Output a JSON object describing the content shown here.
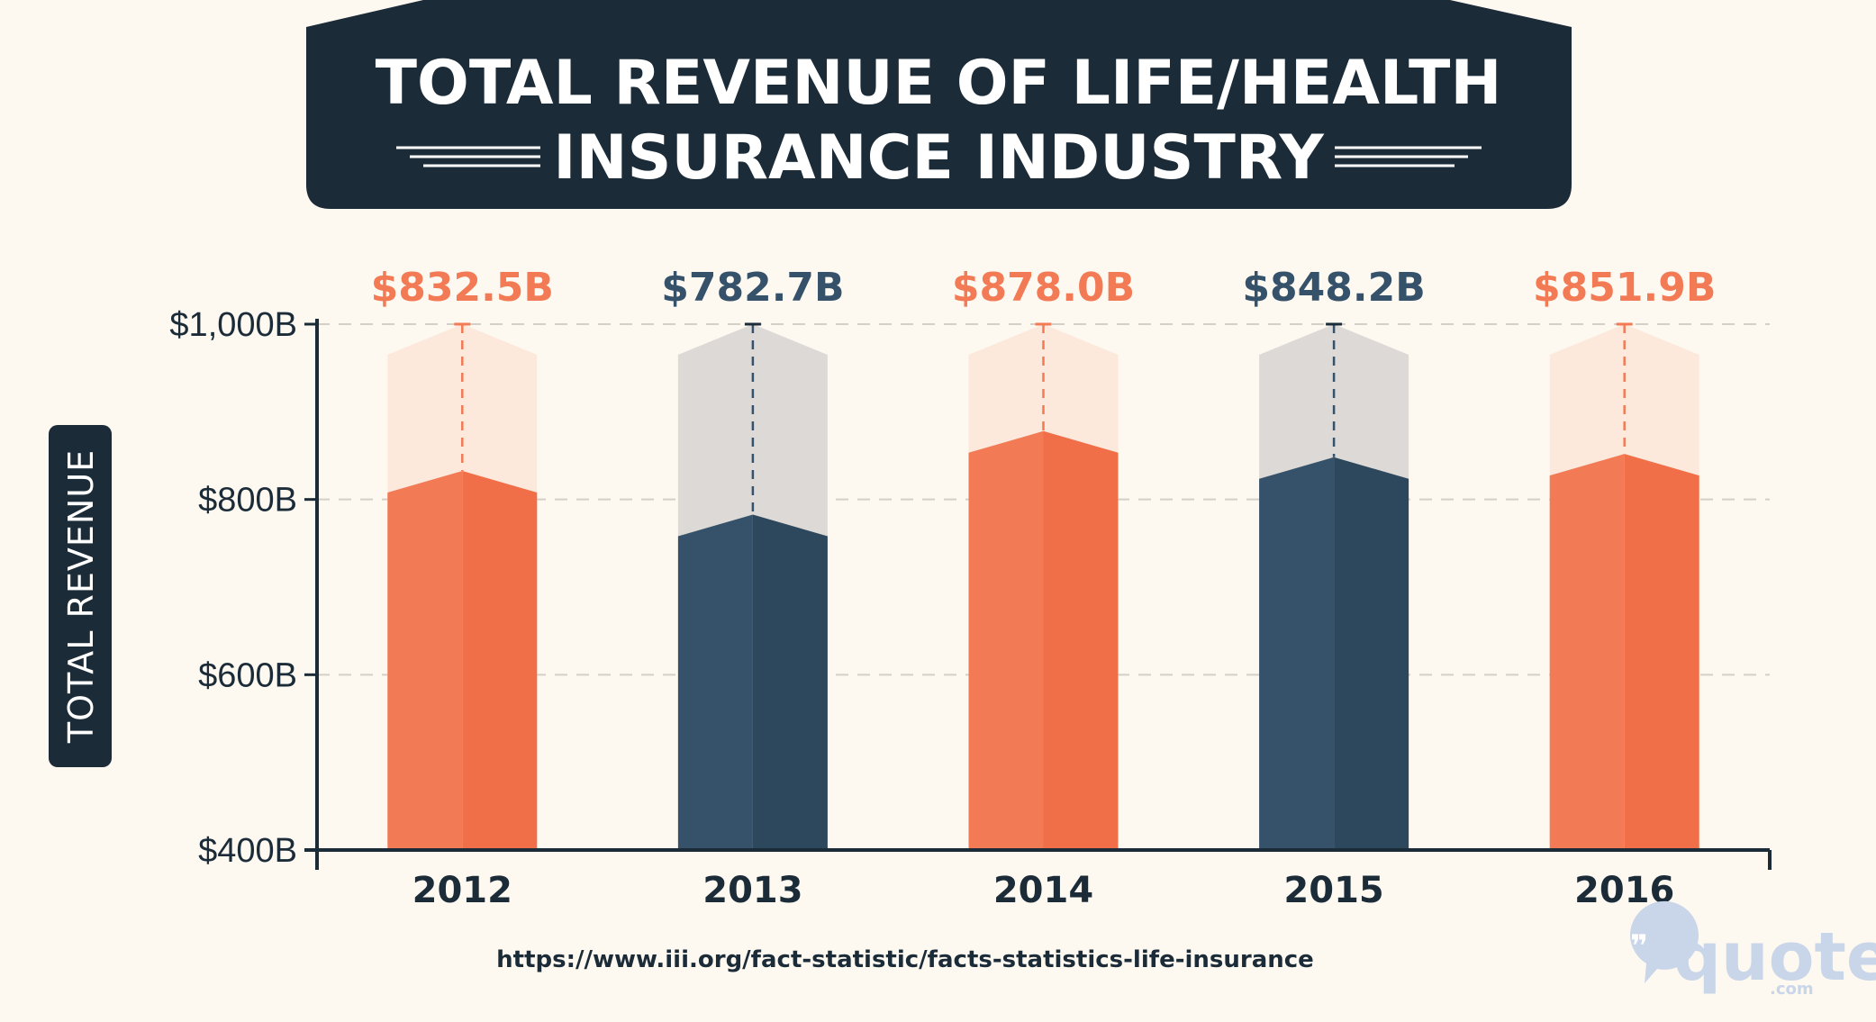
{
  "title": {
    "line1": "TOTAL REVENUE OF LIFE/HEALTH",
    "line2": "INSURANCE INDUSTRY"
  },
  "source": "https://www.iii.org/fact-statistic/facts-statistics-life-insurance",
  "logo": {
    "name": "quote",
    "suffix": ".com"
  },
  "colors": {
    "orange": "#f27a55",
    "orange_light": "#fde8dc",
    "navy": "#36526a",
    "navy_light": "#dcd9d6",
    "dark": "#1b2b38",
    "background": "#fdf9f1"
  },
  "chart_data": {
    "type": "bar",
    "categories": [
      "2012",
      "2013",
      "2014",
      "2015",
      "2016"
    ],
    "values": [
      832.5,
      782.7,
      878.0,
      848.2,
      851.9
    ],
    "value_labels": [
      "$832.5B",
      "$782.7B",
      "$878.0B",
      "$848.2B",
      "$851.9B"
    ],
    "bar_colors": [
      "orange",
      "navy",
      "orange",
      "navy",
      "orange"
    ],
    "ylabel": "TOTAL REVENUE",
    "ylim": [
      400,
      1000
    ],
    "yticks": [
      400,
      600,
      800,
      1000
    ],
    "ytick_labels": [
      "$400B",
      "$600B",
      "$800B",
      "$1,000B"
    ],
    "grid": true
  }
}
